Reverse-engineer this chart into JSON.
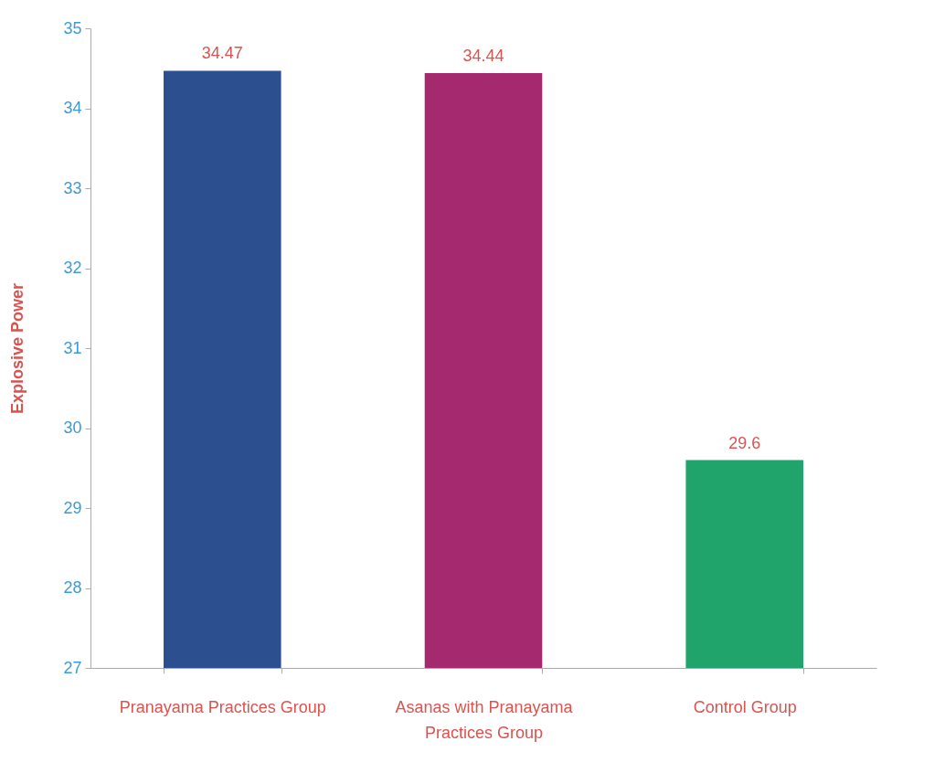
{
  "chart_data": {
    "type": "bar",
    "ylabel": "Explosive Power",
    "categories": [
      "Pranayama Practices Group",
      "Asanas with Pranayama Practices Group",
      "Control Group"
    ],
    "values": [
      34.47,
      34.44,
      29.6
    ],
    "colors": [
      "#2c4f8f",
      "#a5296f",
      "#20a46b"
    ],
    "ylim": [
      27,
      35
    ],
    "yticks": [
      27,
      28,
      29,
      30,
      31,
      32,
      33,
      34,
      35
    ],
    "grid": false,
    "data_labels": true
  }
}
